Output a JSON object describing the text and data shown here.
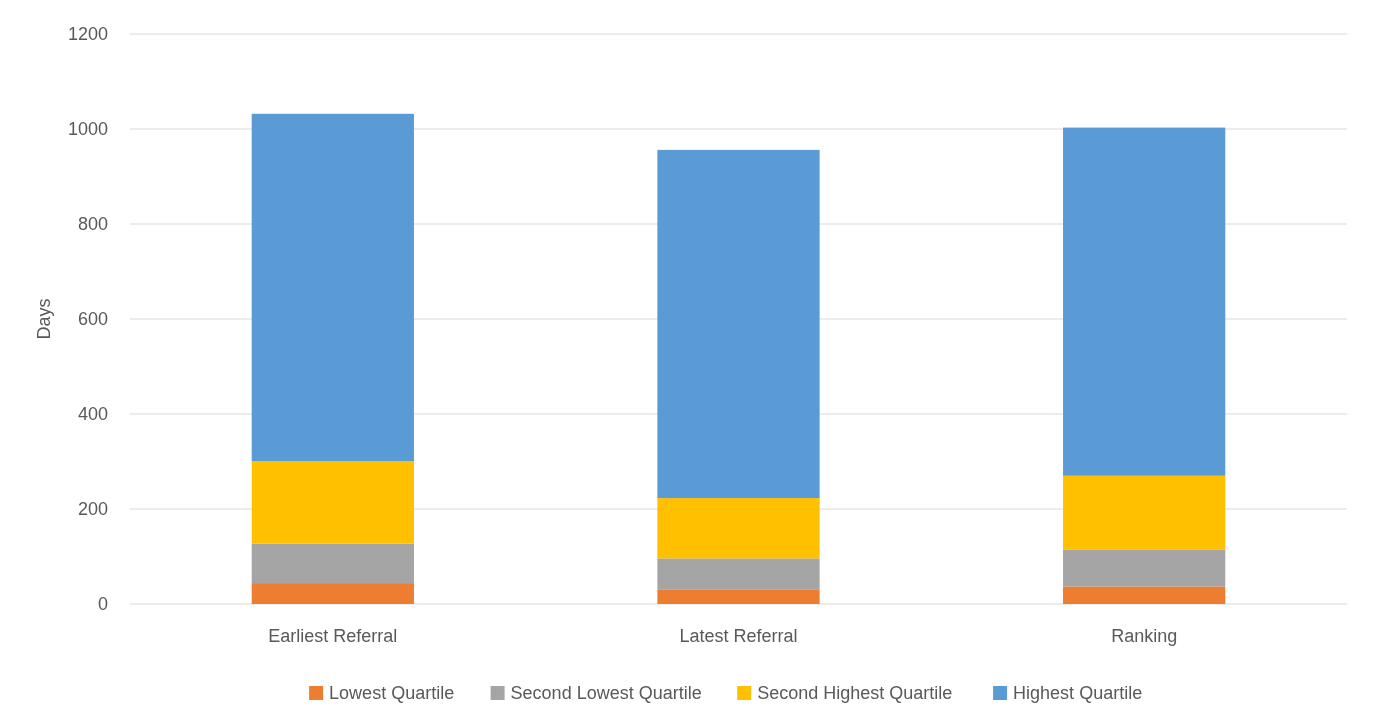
{
  "chart_data": {
    "type": "bar",
    "stacked": true,
    "ylabel": "Days",
    "categories": [
      "Earliest Referral",
      "Latest Referral",
      "Ranking"
    ],
    "series": [
      {
        "name": "Lowest Quartile",
        "color": "#ed7d31",
        "values": [
          44,
          31,
          37
        ]
      },
      {
        "name": "Second Lowest Quartile",
        "color": "#a5a5a5",
        "values": [
          83,
          65,
          77
        ]
      },
      {
        "name": "Second Highest Quartile",
        "color": "#ffc000",
        "values": [
          174,
          127,
          156
        ]
      },
      {
        "name": "Highest Quartile",
        "color": "#5b9bd5",
        "values": [
          731,
          733,
          733
        ]
      }
    ],
    "ylim": [
      0,
      1200
    ],
    "yticks": [
      0,
      200,
      400,
      600,
      800,
      1000,
      1200
    ],
    "grid": "y",
    "legend": "bottom"
  }
}
